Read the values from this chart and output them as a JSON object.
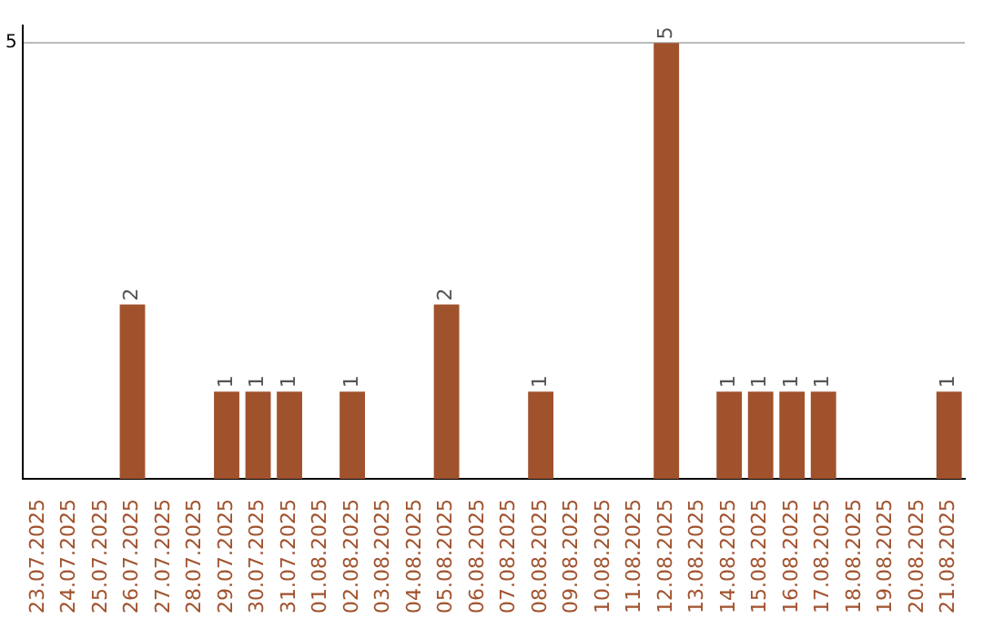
{
  "chart_data": {
    "type": "bar",
    "categories": [
      "23.07.2025",
      "24.07.2025",
      "25.07.2025",
      "26.07.2025",
      "27.07.2025",
      "28.07.2025",
      "29.07.2025",
      "30.07.2025",
      "31.07.2025",
      "01.08.2025",
      "02.08.2025",
      "03.08.2025",
      "04.08.2025",
      "05.08.2025",
      "06.08.2025",
      "07.08.2025",
      "08.08.2025",
      "09.08.2025",
      "10.08.2025",
      "11.08.2025",
      "12.08.2025",
      "13.08.2025",
      "14.08.2025",
      "15.08.2025",
      "16.08.2025",
      "17.08.2025",
      "18.08.2025",
      "19.08.2025",
      "20.08.2025",
      "21.08.2025"
    ],
    "values": [
      null,
      null,
      null,
      2,
      null,
      null,
      1,
      1,
      1,
      null,
      1,
      null,
      null,
      2,
      null,
      null,
      1,
      null,
      null,
      null,
      5,
      null,
      1,
      1,
      1,
      1,
      null,
      null,
      null,
      1
    ],
    "color": "#a0522d",
    "ylim": [
      0,
      5.2
    ],
    "yticks": [
      5
    ],
    "grid": "y",
    "data_labels": true,
    "legend": false
  }
}
